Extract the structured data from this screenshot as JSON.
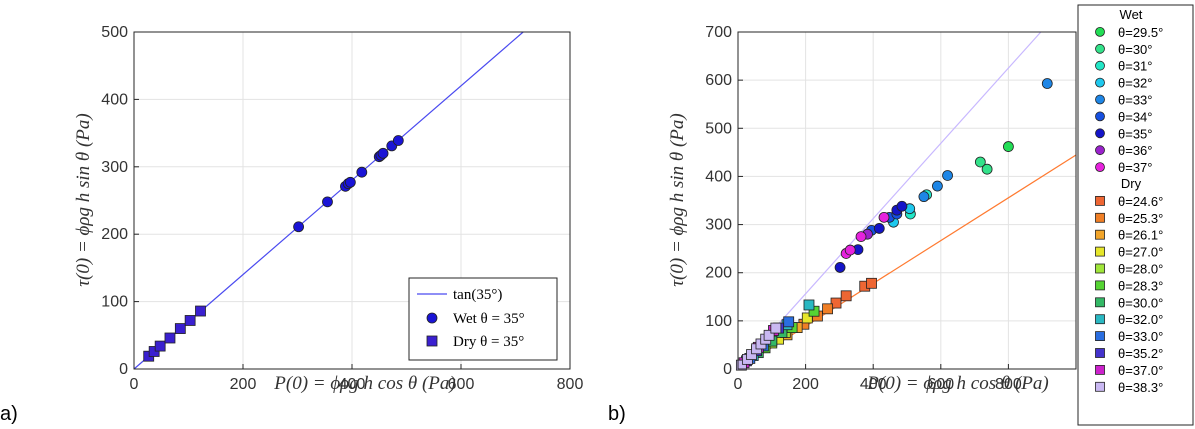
{
  "panels": [
    {
      "id": "a",
      "panel_label": "a)",
      "chart_data": {
        "type": "scatter",
        "xlabel": "P(0) = ϕρg h cos θ (Pa)",
        "ylabel": "τ(0) = ϕρg h sin θ (Pa)",
        "xlim": [
          0,
          800
        ],
        "ylim": [
          0,
          500
        ],
        "xticks": [
          0,
          200,
          400,
          600,
          800
        ],
        "yticks": [
          0,
          100,
          200,
          300,
          400,
          500
        ],
        "grid": true,
        "legend_position": "bottom-right",
        "lines": [
          {
            "name": "tan(35°)",
            "slope": 0.7002,
            "color": "#4a4af0"
          }
        ],
        "series": [
          {
            "name": "Wet θ = 35°",
            "marker": "circle",
            "color": "#1a14d6",
            "x": [
              302,
              355,
              388,
              393,
              397,
              418,
              450,
              453,
              457,
              473,
              485
            ],
            "y": [
              211,
              248,
              271,
              275,
              277,
              292,
              315,
              317,
              320,
              331,
              339
            ]
          },
          {
            "name": "Dry θ = 35°",
            "marker": "square",
            "color": "#3a20d0",
            "x": [
              27,
              37,
              48,
              66,
              85,
              103,
              122
            ],
            "y": [
              19,
              26,
              34,
              46,
              60,
              72,
              86
            ]
          }
        ]
      }
    },
    {
      "id": "b",
      "panel_label": "b)",
      "chart_data": {
        "type": "scatter",
        "xlabel": "P(0) = ϕρg h cos θ (Pa)",
        "ylabel": "τ(0) = ϕρg h sin θ (Pa)",
        "xlim": [
          0,
          1000
        ],
        "ylim": [
          0,
          700
        ],
        "xticks": [
          0,
          200,
          400,
          600,
          800
        ],
        "yticks": [
          0,
          100,
          200,
          300,
          400,
          500,
          600,
          700
        ],
        "grid": true,
        "legend_position": "outside-right",
        "lines": [
          {
            "slope": 0.7813,
            "color": "#c8b8ff"
          },
          {
            "slope": 0.4445,
            "color": "#ff7a30"
          }
        ],
        "legend_groups": [
          "Wet",
          "Dry"
        ],
        "series": [
          {
            "name": "θ=29.5°",
            "group": "Wet",
            "marker": "circle",
            "color": "#22dd55",
            "x": [
              800
            ],
            "y": [
              462
            ]
          },
          {
            "name": "θ=30°",
            "group": "Wet",
            "marker": "circle",
            "color": "#33e28a",
            "x": [
              717,
              737
            ],
            "y": [
              430,
              415
            ]
          },
          {
            "name": "θ=31°",
            "group": "Wet",
            "marker": "circle",
            "color": "#22e6c6",
            "x": [
              510,
              558
            ],
            "y": [
              322,
              362
            ]
          },
          {
            "name": "θ=32°",
            "group": "Wet",
            "marker": "circle",
            "color": "#1ec8ee",
            "x": [
              460,
              508
            ],
            "y": [
              305,
              333
            ]
          },
          {
            "name": "θ=33°",
            "group": "Wet",
            "marker": "circle",
            "color": "#1e86e6",
            "x": [
              550,
              590,
              620,
              915
            ],
            "y": [
              358,
              380,
              402,
              593
            ]
          },
          {
            "name": "θ=34°",
            "group": "Wet",
            "marker": "circle",
            "color": "#1650e0",
            "x": [
              395,
              448,
              470
            ],
            "y": [
              288,
              315,
              322
            ]
          },
          {
            "name": "θ=35°",
            "group": "Wet",
            "marker": "circle",
            "color": "#1414c8",
            "x": [
              302,
              355,
              418,
              470,
              485
            ],
            "y": [
              211,
              248,
              292,
              330,
              338
            ]
          },
          {
            "name": "θ=36°",
            "group": "Wet",
            "marker": "circle",
            "color": "#9a22cc",
            "x": [
              383
            ],
            "y": [
              280
            ]
          },
          {
            "name": "θ=37°",
            "group": "Wet",
            "marker": "circle",
            "color": "#e622dd",
            "x": [
              320,
              332,
              364,
              432
            ],
            "y": [
              240,
              247,
              275,
              315
            ]
          },
          {
            "name": "θ=24.6°",
            "group": "Dry",
            "marker": "square",
            "color": "#ee6633",
            "x": [
              290,
              320,
              375,
              395
            ],
            "y": [
              137,
              152,
              172,
              178
            ]
          },
          {
            "name": "θ=25.3°",
            "group": "Dry",
            "marker": "square",
            "color": "#f07f26",
            "x": [
              195,
              235,
              265
            ],
            "y": [
              93,
              110,
              125
            ]
          },
          {
            "name": "θ=26.1°",
            "group": "Dry",
            "marker": "square",
            "color": "#f2a52a",
            "x": [
              145,
              175
            ],
            "y": [
              71,
              86
            ]
          },
          {
            "name": "θ=27.0°",
            "group": "Dry",
            "marker": "square",
            "color": "#e6e62a",
            "x": [
              120,
              205
            ],
            "y": [
              62,
              106
            ]
          },
          {
            "name": "θ=28.0°",
            "group": "Dry",
            "marker": "square",
            "color": "#a0e63a",
            "x": [
              100,
              140
            ],
            "y": [
              54,
              76
            ]
          },
          {
            "name": "θ=28.3°",
            "group": "Dry",
            "marker": "square",
            "color": "#55d433",
            "x": [
              80,
              160,
              225
            ],
            "y": [
              44,
              86,
              120
            ]
          },
          {
            "name": "θ=30.0°",
            "group": "Dry",
            "marker": "square",
            "color": "#33b866",
            "x": [
              60,
              100,
              130
            ],
            "y": [
              34,
              58,
              76
            ]
          },
          {
            "name": "θ=32.0°",
            "group": "Dry",
            "marker": "square",
            "color": "#2ab8c2",
            "x": [
              45,
              145,
              210
            ],
            "y": [
              28,
              92,
              133
            ]
          },
          {
            "name": "θ=33.0°",
            "group": "Dry",
            "marker": "square",
            "color": "#2a6ee0",
            "x": [
              35,
              75,
              150
            ],
            "y": [
              22,
              48,
              98
            ]
          },
          {
            "name": "θ=35.2°",
            "group": "Dry",
            "marker": "square",
            "color": "#4433cc",
            "x": [
              25,
              55,
              120
            ],
            "y": [
              17,
              38,
              85
            ]
          },
          {
            "name": "θ=37.0°",
            "group": "Dry",
            "marker": "square",
            "color": "#cc22cc",
            "x": [
              18,
              60,
              105
            ],
            "y": [
              13,
              45,
              80
            ]
          },
          {
            "name": "θ=38.3°",
            "group": "Dry",
            "marker": "square",
            "color": "#c9b8f2",
            "x": [
              10,
              28,
              40,
              55,
              68,
              82,
              92,
              112
            ],
            "y": [
              8,
              20,
              30,
              42,
              52,
              62,
              70,
              85
            ]
          }
        ]
      }
    }
  ]
}
